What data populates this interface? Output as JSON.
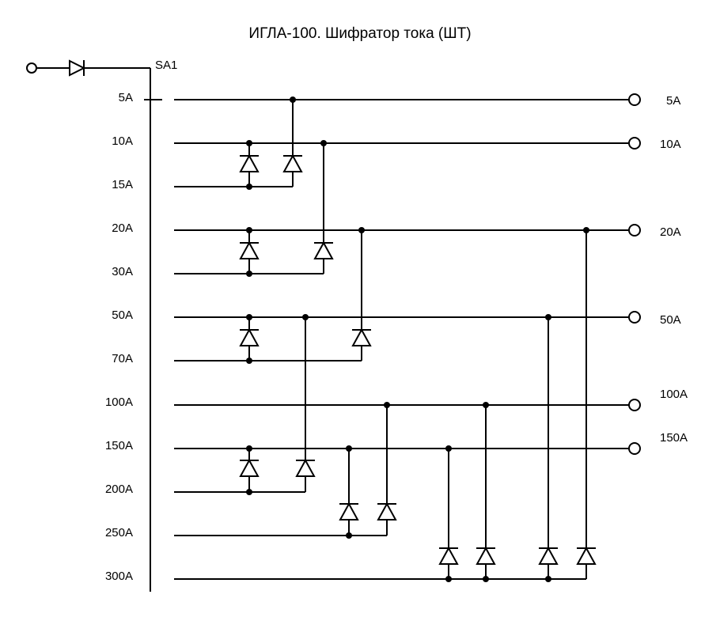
{
  "title": "ИГЛА-100. Шифратор тока (ШТ)",
  "switch_label": "SA1",
  "switch_positions": [
    "5A",
    "10A",
    "15A",
    "20A",
    "30A",
    "50A",
    "70A",
    "100A",
    "150A",
    "200A",
    "250A",
    "300A"
  ],
  "output_labels": [
    "5A",
    "10A",
    "20A",
    "50A",
    "100A",
    "150A"
  ],
  "colors": {
    "line": "#000000",
    "background": "#ffffff"
  }
}
